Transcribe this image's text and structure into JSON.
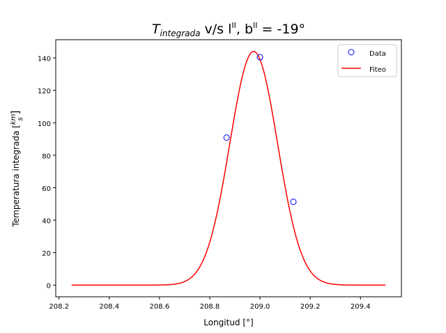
{
  "chart_data": {
    "type": "scatter",
    "title": {
      "main": "T",
      "main_sub": "integrada",
      "mid": " v/s l",
      "mid_sup": "II",
      "tail": ", b",
      "tail_sup": "II",
      "end": " = -19°"
    },
    "xlabel": "Longitud [°]",
    "ylabel": {
      "text": "Temperatura integrada [",
      "frac_num": "km",
      "frac_den": "s",
      "close": "]"
    },
    "xlim": [
      208.187,
      209.563
    ],
    "ylim": [
      -7.2,
      151.2
    ],
    "xticks": [
      208.2,
      208.4,
      208.6,
      208.8,
      209.0,
      209.2,
      209.4
    ],
    "xtick_labels": [
      "208.2",
      "208.4",
      "208.6",
      "208.8",
      "209.0",
      "209.2",
      "209.4"
    ],
    "yticks": [
      0,
      20,
      40,
      60,
      80,
      100,
      120,
      140
    ],
    "ytick_labels": [
      "0",
      "20",
      "40",
      "60",
      "80",
      "100",
      "120",
      "140"
    ],
    "grid": false,
    "legend_position": "top-right",
    "series": [
      {
        "name": "Data",
        "kind": "scatter",
        "marker": "open-circle",
        "color": "#0000ff",
        "x": [
          208.867,
          209.0,
          209.133
        ],
        "y": [
          90.9,
          140.4,
          51.3
        ]
      },
      {
        "name": "Fiteo",
        "kind": "line",
        "color": "#ff0000",
        "model": "gaussian",
        "amplitude": 144.0,
        "center": 208.975,
        "sigma": 0.095,
        "x_range": [
          208.25,
          209.5
        ]
      }
    ]
  }
}
